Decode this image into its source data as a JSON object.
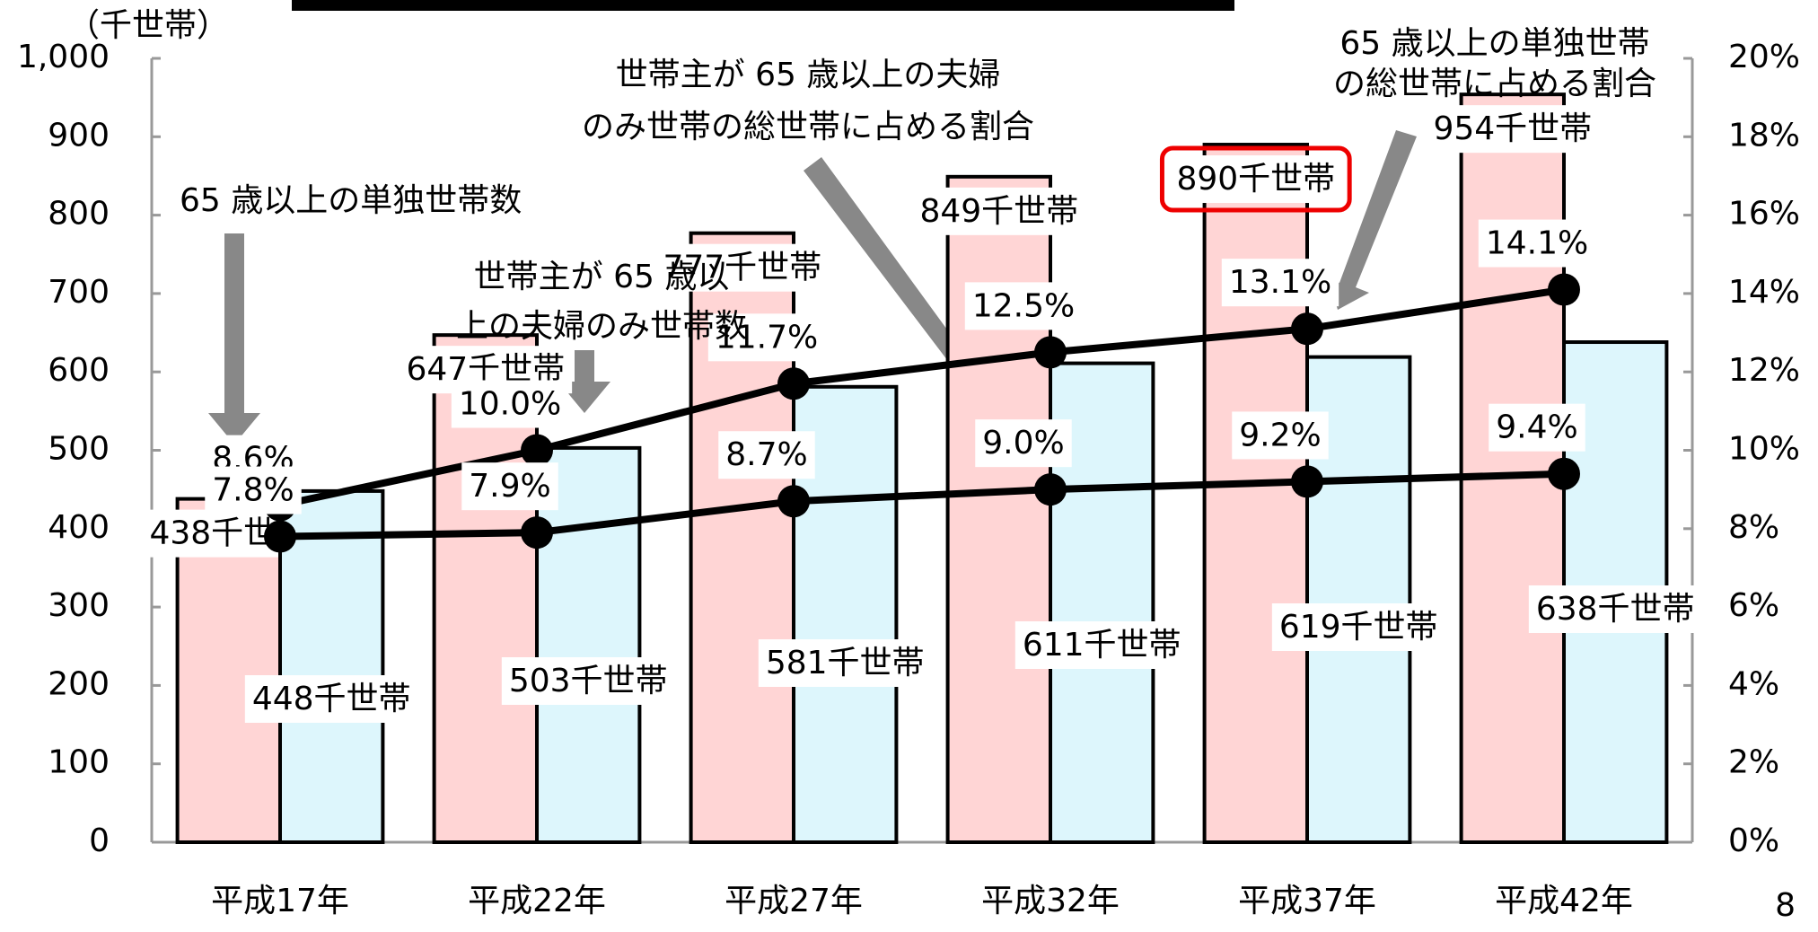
{
  "chart_data": {
    "type": "bar-line",
    "unit_label": "（千世帯）",
    "categories": [
      "平成17年",
      "平成22年",
      "平成27年",
      "平成32年",
      "平成37年",
      "平成42年"
    ],
    "series": [
      {
        "name": "65 歳以上の単独世帯数",
        "color": "#ffd5d5",
        "values": [
          438,
          647,
          777,
          849,
          890,
          954
        ],
        "value_labels": [
          "438千世帯",
          "647千世帯",
          "777千世帯",
          "849千世帯",
          "890千世帯",
          "954千世帯"
        ]
      },
      {
        "name": "世帯主が 65 歳以上の夫婦のみ世帯数",
        "color": "#ddf6fc",
        "values": [
          448,
          503,
          581,
          611,
          619,
          638
        ],
        "value_labels": [
          "448千世帯",
          "503千世帯",
          "581千世帯",
          "611千世帯",
          "619千世帯",
          "638千世帯"
        ]
      },
      {
        "name": "65 歳以上の単独世帯の総世帯に占める割合",
        "color": "#000000",
        "axis": "y2",
        "values": [
          8.6,
          10.0,
          11.7,
          12.5,
          13.1,
          14.1
        ],
        "value_labels": [
          "8.6%",
          "10.0%",
          "11.7%",
          "12.5%",
          "13.1%",
          "14.1%"
        ]
      },
      {
        "name": "世帯主が 65 歳以上の夫婦のみ世帯の総世帯に占める割合",
        "color": "#000000",
        "axis": "y2",
        "values": [
          7.8,
          7.9,
          8.7,
          9.0,
          9.2,
          9.4
        ],
        "value_labels": [
          "7.8%",
          "7.9%",
          "8.7%",
          "9.0%",
          "9.2%",
          "9.4%"
        ]
      }
    ],
    "highlight": 4,
    "ylim": [
      0,
      1000
    ],
    "yticks": [
      0,
      100,
      200,
      300,
      400,
      500,
      600,
      700,
      800,
      900,
      {
        "value": 1000,
        "label": "1,000"
      }
    ],
    "y2lim": [
      0,
      20
    ],
    "y2ticks": [
      {
        "value": 0,
        "label": "0%"
      },
      {
        "value": 2,
        "label": "2%"
      },
      {
        "value": 4,
        "label": "4%"
      },
      {
        "value": 6,
        "label": "6%"
      },
      {
        "value": 8,
        "label": "8%"
      },
      {
        "value": 10,
        "label": "10%"
      },
      {
        "value": 12,
        "label": "12%"
      },
      {
        "value": 14,
        "label": "14%"
      },
      {
        "value": 16,
        "label": "16%"
      },
      {
        "value": 18,
        "label": "18%"
      },
      {
        "value": 20,
        "label": "20%"
      }
    ],
    "page_number": "8"
  }
}
